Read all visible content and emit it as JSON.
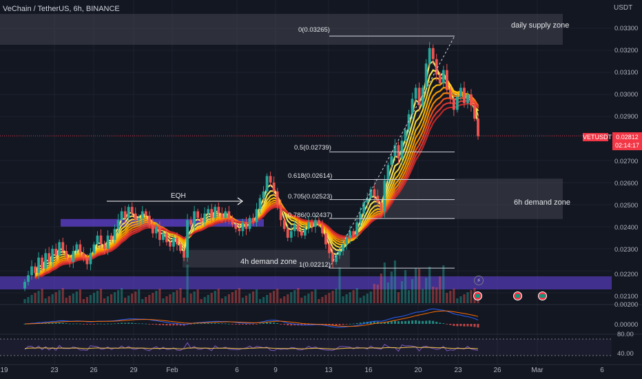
{
  "header": {
    "symbol_line": "VeChain / TetherUS, 6h, BINANCE",
    "unit": "USDT"
  },
  "price_axis": {
    "ticks": [
      "0.03300",
      "0.03200",
      "0.03100",
      "0.03000",
      "0.02900",
      "0.02700",
      "0.02600",
      "0.02500",
      "0.02400",
      "0.02300",
      "0.02200",
      "0.02100"
    ],
    "symbol_tag": "VETUSDT",
    "last_price": "0.02812",
    "countdown": "02:14:17"
  },
  "macd_axis": {
    "ticks": [
      "0.00200",
      "0.00000"
    ]
  },
  "rsi_axis": {
    "ticks": [
      "80.00",
      "40.00"
    ]
  },
  "time_axis": {
    "ticks": [
      "19",
      "23",
      "26",
      "29",
      "Feb",
      "6",
      "9",
      "13",
      "16",
      "20",
      "23",
      "26",
      "Mar",
      "6"
    ]
  },
  "annotations": {
    "daily_supply": "daily supply zone",
    "h6_demand": "6h demand zone",
    "h4_demand": "4h demand zone",
    "eqh": "EQH"
  },
  "fib_levels": [
    {
      "label": "0(0.03265)",
      "value": 0.03265
    },
    {
      "label": "0.5(0.02739)",
      "value": 0.02739
    },
    {
      "label": "0.618(0.02614)",
      "value": 0.02614
    },
    {
      "label": "0.705(0.02523)",
      "value": 0.02523
    },
    {
      "label": "0.786(0.02437)",
      "value": 0.02437
    },
    {
      "label": "1(0.02212)",
      "value": 0.02212
    }
  ],
  "colors": {
    "background": "#131722",
    "up": "#26a69a",
    "down": "#ef5350",
    "zone": "#434651",
    "purple": "#5b3ec8",
    "macd": "#2962ff",
    "signal": "#ff6d00",
    "rsi": "#7e57c2"
  },
  "chart_data": {
    "type": "candlestick",
    "title": "VeChain / TetherUS, 6h, BINANCE",
    "ylabel": "USDT",
    "ylim": [
      0.0205,
      0.0338
    ],
    "x_ticks": [
      "19",
      "23",
      "26",
      "29",
      "Feb",
      "6",
      "9",
      "13",
      "16",
      "20",
      "23",
      "26",
      "Mar",
      "6"
    ],
    "close": [
      0.0215,
      0.0218,
      0.0222,
      0.0219,
      0.0226,
      0.0221,
      0.0228,
      0.0224,
      0.023,
      0.0227,
      0.0233,
      0.0229,
      0.0226,
      0.0224,
      0.0229,
      0.0232,
      0.0228,
      0.0226,
      0.0223,
      0.0228,
      0.0232,
      0.0236,
      0.0232,
      0.023,
      0.0236,
      0.0234,
      0.0239,
      0.0243,
      0.0247,
      0.0244,
      0.0249,
      0.0246,
      0.0243,
      0.0244,
      0.0247,
      0.0245,
      0.0241,
      0.0237,
      0.024,
      0.0234,
      0.0237,
      0.0233,
      0.0231,
      0.0235,
      0.0232,
      0.0229,
      0.0226,
      0.0243,
      0.0241,
      0.0247,
      0.0244,
      0.0242,
      0.0246,
      0.0248,
      0.0244,
      0.0249,
      0.0246,
      0.0244,
      0.0247,
      0.0244,
      0.0241,
      0.0239,
      0.0238,
      0.0242,
      0.0239,
      0.0244,
      0.0242,
      0.0248,
      0.0253,
      0.0256,
      0.0263,
      0.026,
      0.0256,
      0.025,
      0.0243,
      0.0239,
      0.0235,
      0.0238,
      0.0241,
      0.0238,
      0.0236,
      0.0239,
      0.0242,
      0.024,
      0.0243,
      0.0241,
      0.0237,
      0.0232,
      0.0228,
      0.0224,
      0.0227,
      0.0229,
      0.0232,
      0.0235,
      0.0238,
      0.0236,
      0.0242,
      0.0246,
      0.0251,
      0.0253,
      0.0257,
      0.0254,
      0.0251,
      0.0247,
      0.0261,
      0.0268,
      0.0272,
      0.0277,
      0.0271,
      0.0279,
      0.0284,
      0.0291,
      0.0298,
      0.0303,
      0.0295,
      0.0303,
      0.0314,
      0.0321,
      0.0316,
      0.0309,
      0.0305,
      0.0311,
      0.0302,
      0.0298,
      0.0293,
      0.0299,
      0.0303,
      0.0296,
      0.03,
      0.0295,
      0.0289,
      0.0281
    ],
    "fib_levels": {
      "0": 0.03265,
      "0.5": 0.02739,
      "0.618": 0.02614,
      "0.705": 0.02523,
      "0.786": 0.02437,
      "1": 0.02212
    },
    "zones": [
      {
        "name": "daily supply zone",
        "range": [
          0.03225,
          0.03365
        ]
      },
      {
        "name": "6h demand zone",
        "range": [
          0.02435,
          0.02618
        ]
      },
      {
        "name": "4h demand zone",
        "range": [
          0.02215,
          0.02295
        ]
      }
    ],
    "last_price": 0.02812
  }
}
